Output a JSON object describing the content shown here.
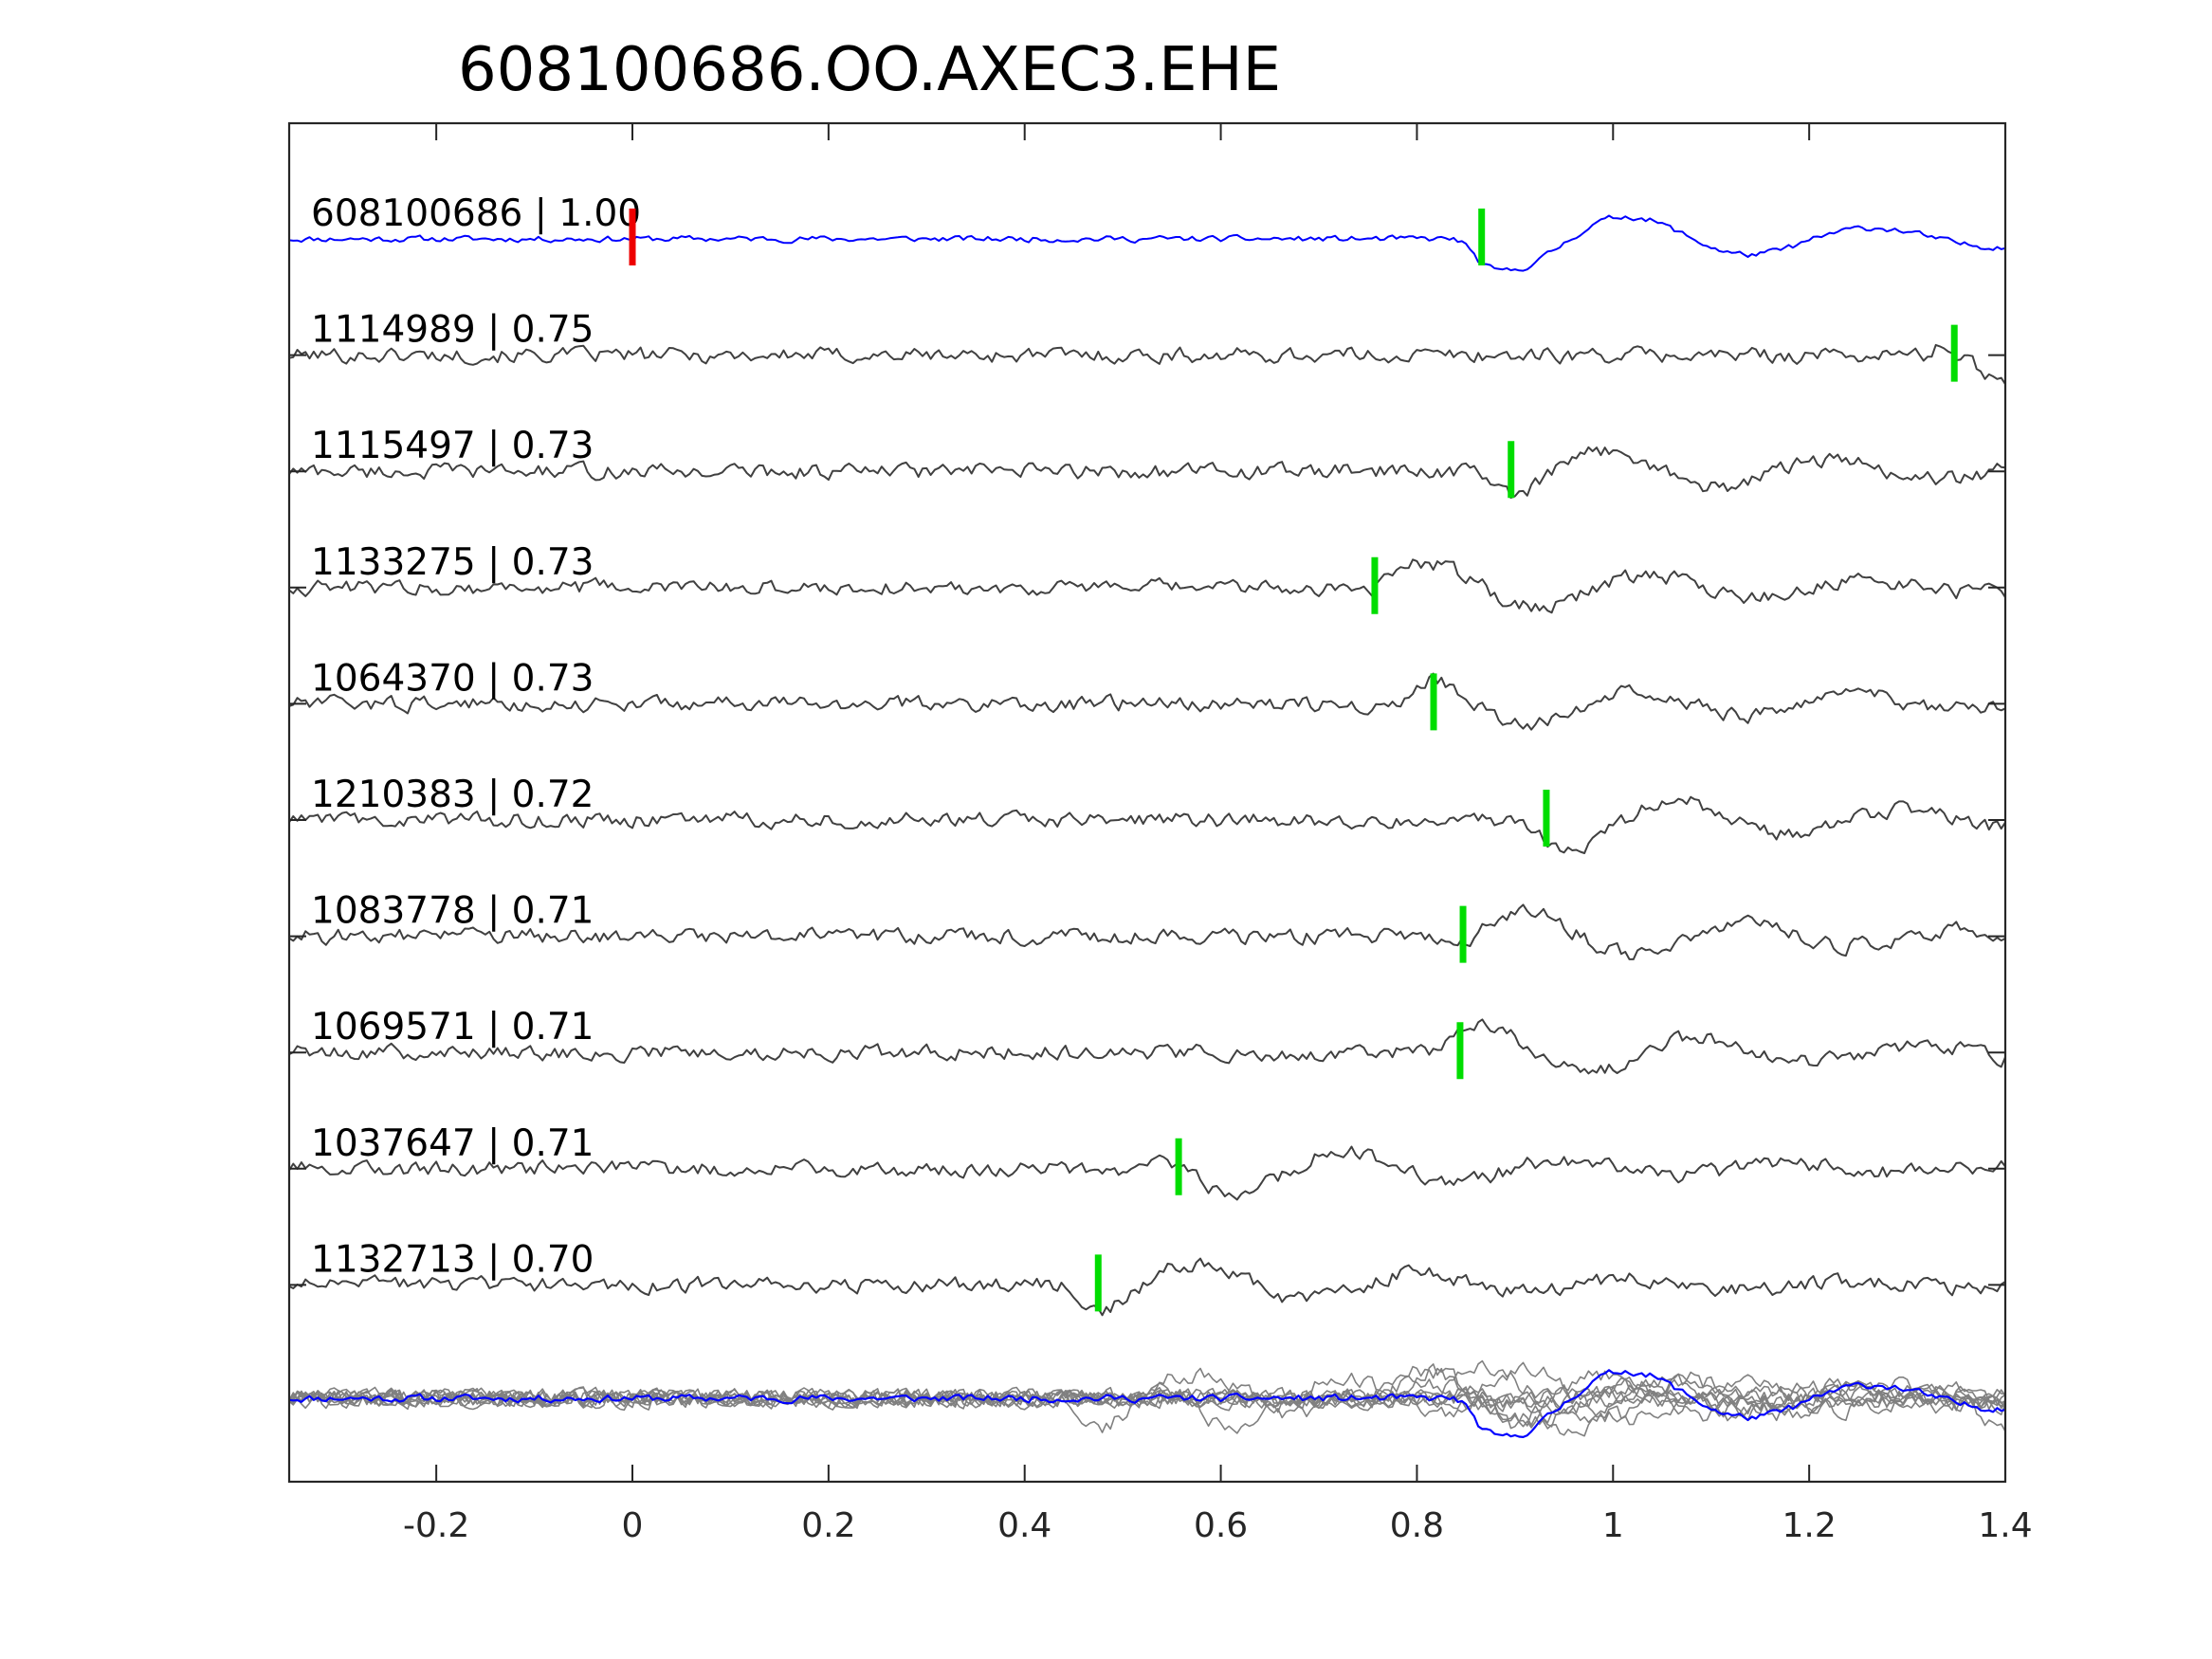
{
  "chart_data": {
    "type": "line",
    "title": "608100686.OO.AXEC3.EHE",
    "xlabel": "",
    "ylabel": "",
    "xlim": [
      -0.35,
      1.4
    ],
    "xticks": [
      -0.2,
      0,
      0.2,
      0.4,
      0.6,
      0.8,
      1,
      1.2,
      1.4
    ],
    "xtick_labels": [
      "-0.2",
      "0",
      "0.2",
      "0.4",
      "0.6",
      "0.8",
      "1",
      "1.2",
      "1.4"
    ],
    "grid": false,
    "template": {
      "label": "608100686 | 1.00",
      "color": "#0000ff",
      "red_pick": 0.0,
      "green_pick": 0.866
    },
    "traces": [
      {
        "label": "1114989 | 0.75",
        "pick": 1.348
      },
      {
        "label": "1115497 | 0.73",
        "pick": 0.896
      },
      {
        "label": "1133275 | 0.73",
        "pick": 0.757
      },
      {
        "label": "1064370 | 0.73",
        "pick": 0.817
      },
      {
        "label": "1210383 | 0.72",
        "pick": 0.932
      },
      {
        "label": "1083778 | 0.71",
        "pick": 0.847
      },
      {
        "label": "1069571 | 0.71",
        "pick": 0.844
      },
      {
        "label": "1037647 | 0.71",
        "pick": 0.557
      },
      {
        "label": "1132713 | 0.70",
        "pick": 0.475
      }
    ],
    "colors": {
      "template": "#0000ff",
      "traces": "#404040",
      "stack": "#808080",
      "pick": "#00dd00",
      "origin_pick": "#ee0000"
    }
  }
}
